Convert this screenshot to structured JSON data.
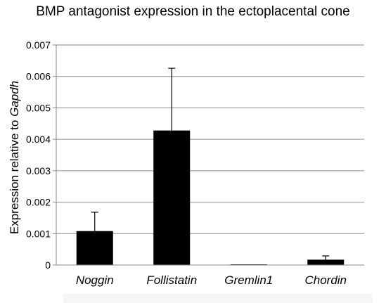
{
  "chart_data": {
    "type": "bar",
    "title": "BMP antagonist expression in the ectoplacental cone",
    "ylabel_prefix": "Expression relative to ",
    "ylabel_gene": "Gapdh",
    "categories": [
      "Noggin",
      "Follistatin",
      "Gremlin1",
      "Chordin"
    ],
    "values": [
      0.00108,
      0.00428,
      1e-05,
      0.00017
    ],
    "error_upper": [
      0.00168,
      0.00626,
      1e-05,
      0.00029
    ],
    "ylim": [
      0,
      0.007
    ],
    "yticks": [
      "0",
      "0.001",
      "0.002",
      "0.003",
      "0.004",
      "0.005",
      "0.006",
      "0.007"
    ],
    "grid": true,
    "bar_color": "#000000",
    "grid_color": "#8c8c8c",
    "category_label_style": "italic"
  }
}
